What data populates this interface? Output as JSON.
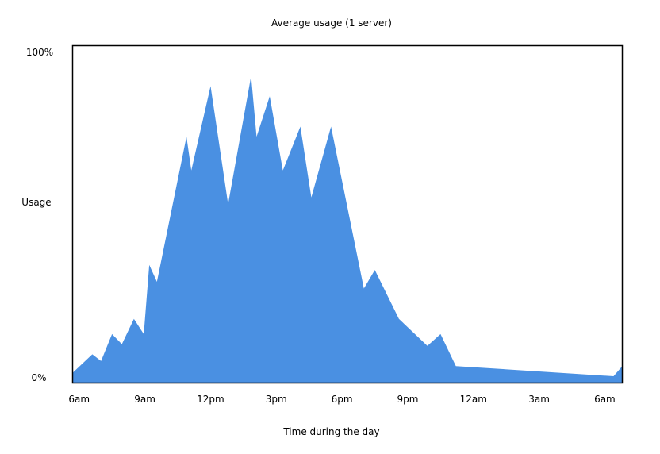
{
  "chart_data": {
    "type": "area",
    "title": "Average usage (1 server)",
    "xlabel": "Time during the day",
    "ylabel": "Usage",
    "y_tick_labels": [
      "100%",
      "0%"
    ],
    "ylim": [
      0,
      100
    ],
    "x_tick_labels": [
      "6am",
      "9am",
      "12pm",
      "3pm",
      "6pm",
      "9pm",
      "12am",
      "3am",
      "6am"
    ],
    "x_tick_hours": [
      6,
      9,
      12,
      15,
      18,
      21,
      24,
      27,
      30
    ],
    "xlim_hours": [
      5.7,
      30.8
    ],
    "grid": false,
    "legend": "none",
    "area_color": "#4a90e2",
    "series": [
      {
        "x_hours": [
          5.7,
          6.6,
          7.0,
          7.5,
          7.95,
          8.5,
          8.95,
          9.2,
          9.55,
          10.9,
          11.12,
          12.0,
          12.8,
          13.85,
          14.1,
          14.7,
          15.3,
          16.1,
          16.6,
          17.5,
          19.0,
          19.5,
          20.6,
          21.9,
          22.5,
          23.2,
          30.4,
          30.8
        ],
        "values": [
          3,
          8.5,
          6.5,
          14.5,
          11.5,
          19,
          14.5,
          35,
          30,
          73,
          63,
          88,
          53,
          91,
          73,
          85,
          63,
          76,
          55,
          76,
          28,
          33.5,
          19,
          11,
          14.5,
          5,
          2,
          5
        ]
      }
    ]
  }
}
